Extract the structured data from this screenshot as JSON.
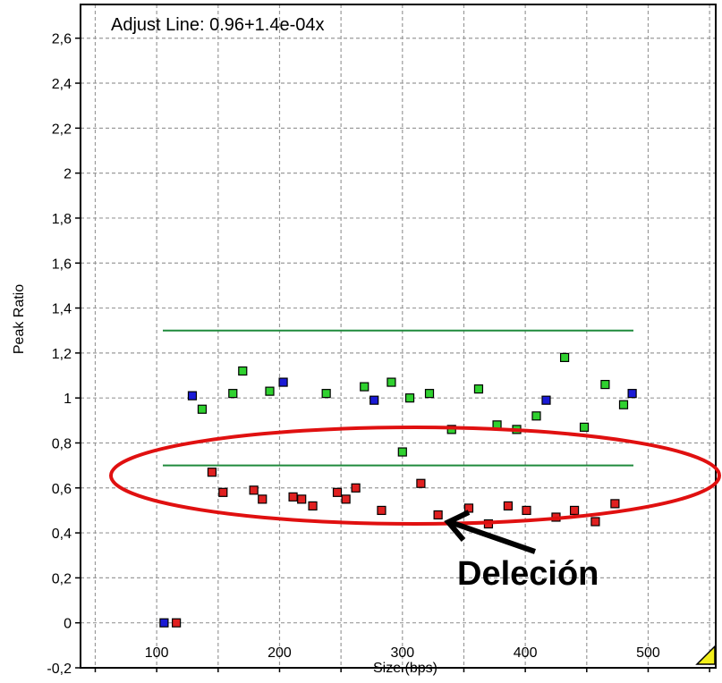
{
  "chart_data": {
    "type": "scatter",
    "title": "",
    "fit_label": "Adjust Line: 0.96+1.4e-04x",
    "xlabel": "Size (bps)",
    "ylabel": "Peak Ratio",
    "xlim": [
      38,
      555
    ],
    "ylim": [
      -0.2,
      2.75
    ],
    "x_ticks": [
      100,
      200,
      300,
      400,
      500
    ],
    "y_ticks": [
      -0.2,
      0,
      0.2,
      0.4,
      0.6,
      0.8,
      1,
      1.2,
      1.4,
      1.6,
      1.8,
      2,
      2.2,
      2.4,
      2.6
    ],
    "y_tick_labels": [
      "-0,2",
      "0",
      "0,2",
      "0,4",
      "0,6",
      "0,8",
      "1",
      "1,2",
      "1,4",
      "1,6",
      "1,8",
      "2",
      "2,2",
      "2,4",
      "2,6"
    ],
    "x_grid": [
      50,
      100,
      150,
      200,
      250,
      300,
      350,
      400,
      450,
      500,
      550
    ],
    "grid": true,
    "threshold_lines": [
      {
        "y": 1.3,
        "x_range": [
          105,
          488
        ],
        "color": "#1f8a3c"
      },
      {
        "y": 0.7,
        "x_range": [
          105,
          488
        ],
        "color": "#1f8a3c"
      }
    ],
    "series": [
      {
        "color": "#2fd12f",
        "points": [
          [
            137,
            0.95
          ],
          [
            162,
            1.02
          ],
          [
            170,
            1.12
          ],
          [
            192,
            1.03
          ],
          [
            238,
            1.02
          ],
          [
            269,
            1.05
          ],
          [
            291,
            1.07
          ],
          [
            306,
            1.0
          ],
          [
            322,
            1.02
          ],
          [
            340,
            0.86
          ],
          [
            362,
            1.04
          ],
          [
            377,
            0.88
          ],
          [
            393,
            0.86
          ],
          [
            409,
            0.92
          ],
          [
            432,
            1.18
          ],
          [
            448,
            0.87
          ],
          [
            465,
            1.06
          ],
          [
            480,
            0.97
          ],
          [
            300,
            0.76
          ]
        ]
      },
      {
        "color": "#1a1ad6",
        "points": [
          [
            106,
            0.0
          ],
          [
            129,
            1.01
          ],
          [
            203,
            1.07
          ],
          [
            277,
            0.99
          ],
          [
            417,
            0.99
          ],
          [
            487,
            1.02
          ]
        ]
      },
      {
        "color": "#e02020",
        "points": [
          [
            116,
            0.0
          ],
          [
            145,
            0.67
          ],
          [
            154,
            0.58
          ],
          [
            179,
            0.59
          ],
          [
            186,
            0.55
          ],
          [
            211,
            0.56
          ],
          [
            218,
            0.55
          ],
          [
            227,
            0.52
          ],
          [
            247,
            0.58
          ],
          [
            254,
            0.55
          ],
          [
            262,
            0.6
          ],
          [
            283,
            0.5
          ],
          [
            315,
            0.62
          ],
          [
            329,
            0.48
          ],
          [
            354,
            0.51
          ],
          [
            370,
            0.44
          ],
          [
            386,
            0.52
          ],
          [
            401,
            0.5
          ],
          [
            425,
            0.47
          ],
          [
            440,
            0.5
          ],
          [
            457,
            0.45
          ],
          [
            473,
            0.53
          ]
        ]
      }
    ],
    "annotations": [
      {
        "text": "Deleción"
      }
    ]
  }
}
